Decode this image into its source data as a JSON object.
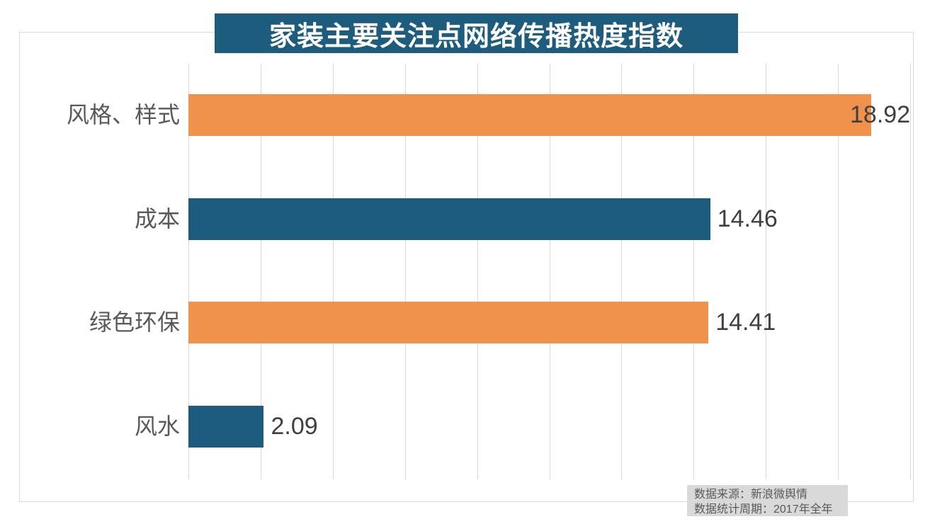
{
  "title": "家装主要关注点网络传播热度指数",
  "chart_data": {
    "type": "bar",
    "orientation": "horizontal",
    "title": "家装主要关注点网络传播热度指数",
    "categories": [
      "风格、样式",
      "成本",
      "绿色环保",
      "风水"
    ],
    "values": [
      18.92,
      14.46,
      14.41,
      2.09
    ],
    "value_labels": [
      "18.92",
      "14.46",
      "14.41",
      "2.09"
    ],
    "bar_colors": [
      "#F0924B",
      "#1E5C7D",
      "#F0924B",
      "#1E5C7D"
    ],
    "xlabel": "",
    "ylabel": "",
    "xlim": [
      0,
      20
    ],
    "gridline_step": 2,
    "grid": true,
    "legend": "none",
    "value_label_position": "outside-end"
  },
  "source_note": {
    "line1": "数据来源：新浪微舆情",
    "line2": "数据统计周期：2017年全年"
  },
  "colors": {
    "banner_bg": "#1E5C7D",
    "banner_text": "#FFFFFF",
    "accent_orange": "#F0924B",
    "accent_teal": "#1E5C7D",
    "grid": "#D9D9D9",
    "frame": "#D9D9D9",
    "category_text": "#595959",
    "value_text": "#404040",
    "source_bg": "#D9D9D9",
    "source_text": "#595959",
    "background": "#FFFFFF"
  }
}
